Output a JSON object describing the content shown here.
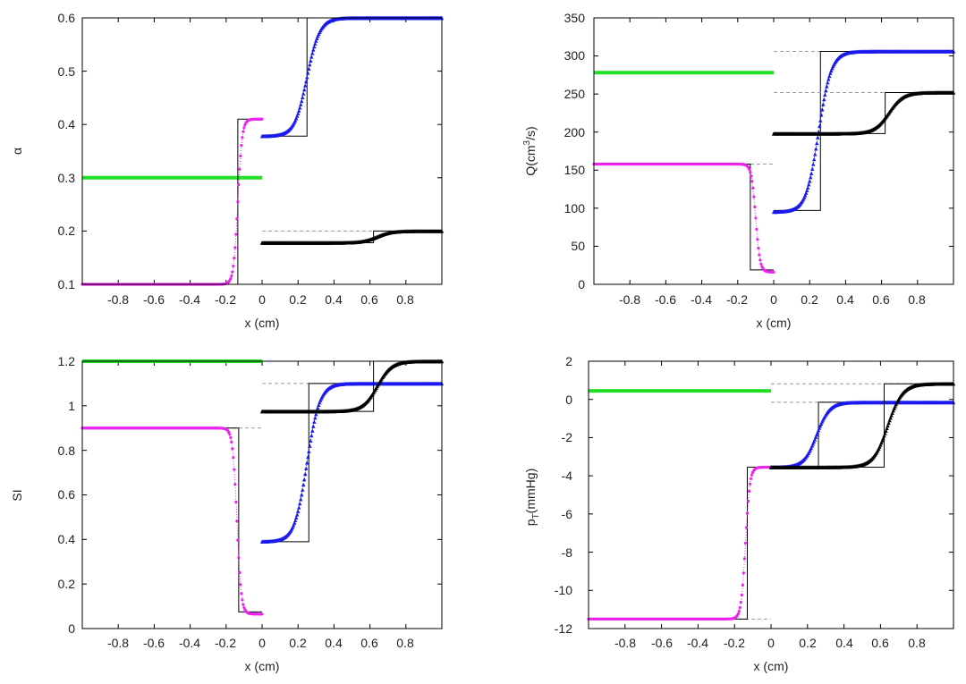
{
  "chart_data": [
    {
      "type": "line",
      "id": "alpha",
      "xlabel": "x (cm)",
      "ylabel": "α",
      "xlim": [
        -1.0,
        1.0
      ],
      "ylim": [
        0.1,
        0.6
      ],
      "xticks": [
        -0.8,
        -0.6,
        -0.4,
        -0.2,
        0,
        0.2,
        0.4,
        0.6,
        0.8
      ],
      "xtick_labels": [
        "-0.8",
        "-0.6",
        "-0.4",
        "-0.2",
        "0",
        "0.2",
        "0.4",
        "0.6",
        "0.8"
      ],
      "yticks": [
        0.1,
        0.2,
        0.3,
        0.4,
        0.5,
        0.6
      ],
      "ytick_labels": [
        "0.1",
        "0.2",
        "0.3",
        "0.4",
        "0.5",
        "0.6"
      ],
      "series": [
        {
          "name": "green",
          "color": "#22dd22",
          "marker": "dot",
          "x_range": [
            -1.0,
            0.0
          ],
          "type": "constant",
          "value": 0.3
        },
        {
          "name": "magenta",
          "color": "#ee22ee",
          "marker": "dot",
          "x_range": [
            -1.0,
            0.0
          ],
          "type": "sigmoid",
          "left": 0.1,
          "right": 0.41,
          "center": -0.135,
          "width": 0.012,
          "exact_step": -0.135,
          "ref_level": null
        },
        {
          "name": "blue",
          "color": "#1a1aee",
          "marker": "triangle",
          "x_range": [
            0.0,
            1.0
          ],
          "type": "sigmoid",
          "left": 0.378,
          "right": 0.6,
          "center": 0.25,
          "width": 0.035,
          "exact_step": 0.25,
          "ref_level": null
        },
        {
          "name": "black",
          "color": "#000000",
          "marker": "triangle",
          "x_range": [
            0.0,
            1.0
          ],
          "type": "sigmoid",
          "left": 0.178,
          "right": 0.2,
          "center": 0.64,
          "width": 0.04,
          "exact_step": 0.62,
          "ref_level": 0.2
        }
      ]
    },
    {
      "type": "line",
      "id": "Q",
      "xlabel": "x (cm)",
      "ylabel_main": "Q(cm",
      "ylabel_sup": "3",
      "ylabel_tail": "/s)",
      "xlim": [
        -1.0,
        1.0
      ],
      "ylim": [
        0,
        350
      ],
      "xticks": [
        -0.8,
        -0.6,
        -0.4,
        -0.2,
        0,
        0.2,
        0.4,
        0.6,
        0.8
      ],
      "xtick_labels": [
        "-0.8",
        "-0.6",
        "-0.4",
        "-0.2",
        "0",
        "0.2",
        "0.4",
        "0.6",
        "0.8"
      ],
      "yticks": [
        0,
        50,
        100,
        150,
        200,
        250,
        300,
        350
      ],
      "ytick_labels": [
        "0",
        "50",
        "100",
        "150",
        "200",
        "250",
        "300",
        "350"
      ],
      "series": [
        {
          "name": "green",
          "color": "#22dd22",
          "marker": "dot",
          "x_range": [
            -1.0,
            0.0
          ],
          "type": "constant",
          "value": 278
        },
        {
          "name": "magenta",
          "color": "#ee22ee",
          "marker": "dot",
          "x_range": [
            -1.0,
            0.0
          ],
          "type": "sigmoid",
          "left": 158,
          "right": 16,
          "center": -0.1,
          "width": 0.012,
          "exact_step": -0.13,
          "exact_right": 19,
          "ref_level": 158
        },
        {
          "name": "blue",
          "color": "#1a1aee",
          "marker": "triangle",
          "x_range": [
            0.0,
            1.0
          ],
          "type": "sigmoid",
          "left": 95,
          "right": 306,
          "center": 0.25,
          "width": 0.035,
          "exact_step": 0.26,
          "exact_left": 97,
          "ref_level": 306
        },
        {
          "name": "black",
          "color": "#000000",
          "marker": "triangle",
          "x_range": [
            0.0,
            1.0
          ],
          "type": "sigmoid",
          "left": 198,
          "right": 252,
          "center": 0.64,
          "width": 0.04,
          "exact_step": 0.62,
          "ref_level": 252
        }
      ]
    },
    {
      "type": "line",
      "id": "SI",
      "xlabel": "x (cm)",
      "ylabel": "SI",
      "xlim": [
        -1.0,
        1.0
      ],
      "ylim": [
        0,
        1.2
      ],
      "xticks": [
        -0.8,
        -0.6,
        -0.4,
        -0.2,
        0,
        0.2,
        0.4,
        0.6,
        0.8
      ],
      "xtick_labels": [
        "-0.8",
        "-0.6",
        "-0.4",
        "-0.2",
        "0",
        "0.2",
        "0.4",
        "0.6",
        "0.8"
      ],
      "yticks": [
        0,
        0.2,
        0.4,
        0.6,
        0.8,
        1.0,
        1.2
      ],
      "ytick_labels": [
        "0",
        "0.2",
        "0.4",
        "0.6",
        "0.8",
        "1",
        "1.2"
      ],
      "series": [
        {
          "name": "green",
          "color": "#22dd22",
          "marker": "dot",
          "x_range": [
            -1.0,
            0.0
          ],
          "type": "constant",
          "value": 1.2
        },
        {
          "name": "magenta",
          "color": "#ee22ee",
          "marker": "dot",
          "x_range": [
            -1.0,
            0.0
          ],
          "type": "sigmoid",
          "left": 0.9,
          "right": 0.065,
          "center": -0.14,
          "width": 0.012,
          "exact_step": -0.13,
          "exact_right": 0.075,
          "ref_level": 0.9
        },
        {
          "name": "blue",
          "color": "#1a1aee",
          "marker": "triangle",
          "x_range": [
            0.0,
            1.0
          ],
          "type": "sigmoid",
          "left": 0.39,
          "right": 1.1,
          "center": 0.25,
          "width": 0.035,
          "exact_step": 0.26,
          "ref_level": 1.1
        },
        {
          "name": "black",
          "color": "#000000",
          "marker": "triangle",
          "x_range": [
            0.0,
            1.0
          ],
          "type": "sigmoid",
          "left": 0.975,
          "right": 1.2,
          "center": 0.64,
          "width": 0.04,
          "exact_step": 0.62,
          "ref_level": null
        }
      ]
    },
    {
      "type": "line",
      "id": "pT",
      "xlabel": "x (cm)",
      "ylabel_main": "p",
      "ylabel_sub": "T",
      "ylabel_tail": "(mmHg)",
      "xlim": [
        -1.0,
        1.0
      ],
      "ylim": [
        -12,
        2
      ],
      "xticks": [
        -0.8,
        -0.6,
        -0.4,
        -0.2,
        0,
        0.2,
        0.4,
        0.6,
        0.8
      ],
      "xtick_labels": [
        "-0.8",
        "-0.6",
        "-0.4",
        "-0.2",
        "0",
        "0.2",
        "0.4",
        "0.6",
        "0.8"
      ],
      "yticks": [
        -12,
        -10,
        -8,
        -6,
        -4,
        -2,
        0,
        2
      ],
      "ytick_labels": [
        "-12",
        "-10",
        "-8",
        "-6",
        "-4",
        "-2",
        "0",
        "2"
      ],
      "series": [
        {
          "name": "green",
          "color": "#22dd22",
          "marker": "dot",
          "x_range": [
            -1.0,
            0.0
          ],
          "type": "constant",
          "value": 0.45
        },
        {
          "name": "magenta",
          "color": "#ee22ee",
          "marker": "dot",
          "x_range": [
            -1.0,
            0.0
          ],
          "type": "sigmoid",
          "left": -11.5,
          "right": -3.55,
          "center": -0.14,
          "width": 0.012,
          "exact_step": -0.13,
          "ref_level": -11.5
        },
        {
          "name": "blue",
          "color": "#1a1aee",
          "marker": "triangle",
          "x_range": [
            0.0,
            1.0
          ],
          "type": "sigmoid",
          "left": -3.55,
          "right": -0.15,
          "center": 0.25,
          "width": 0.035,
          "exact_step": 0.26,
          "ref_level": -0.15
        },
        {
          "name": "black",
          "color": "#000000",
          "marker": "triangle",
          "x_range": [
            0.0,
            1.0
          ],
          "type": "sigmoid",
          "left": -3.55,
          "right": 0.82,
          "center": 0.64,
          "width": 0.04,
          "exact_step": 0.62,
          "ref_level": 0.82
        }
      ]
    }
  ]
}
